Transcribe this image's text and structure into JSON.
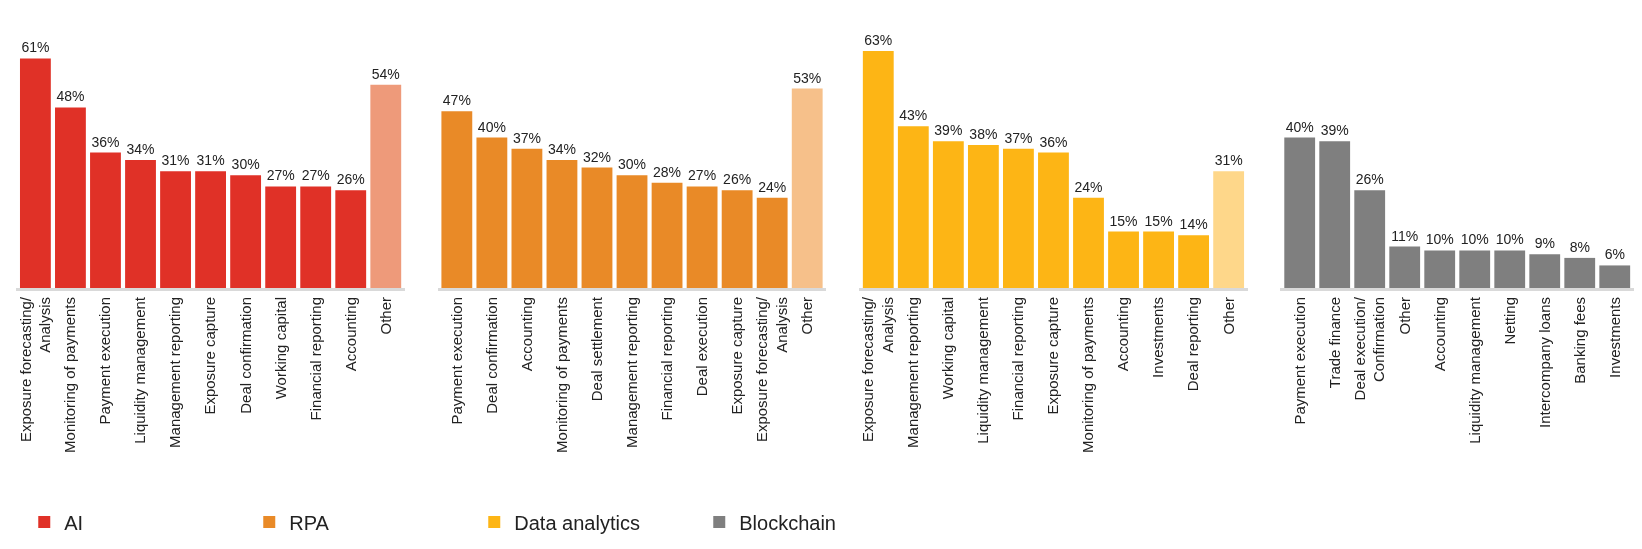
{
  "chart_data": [
    {
      "type": "bar",
      "legend": "bottom",
      "tick_labels": "x",
      "categories": [
        "Exposure forecasting/\nAnalysis",
        "Monitoring of payments",
        "Payment execution",
        "Liquidity management",
        "Management reporting",
        "Exposure capture",
        "Deal confirmation",
        "Working capital",
        "Financial reporting",
        "Accounting",
        "Other"
      ],
      "series": [
        {
          "name": "AI",
          "color": "#e03127",
          "colors": [
            "#e03127",
            "#e03127",
            "#e03127",
            "#e03127",
            "#e03127",
            "#e03127",
            "#e03127",
            "#e03127",
            "#e03127",
            "#e03127",
            "#ee9a7a"
          ],
          "values": [
            61,
            48,
            36,
            34,
            31,
            31,
            30,
            27,
            27,
            26,
            54
          ],
          "value_labels": [
            "61%",
            "48%",
            "36%",
            "34%",
            "31%",
            "31%",
            "30%",
            "27%",
            "27%",
            "26%",
            "54%"
          ]
        }
      ]
    },
    {
      "type": "bar",
      "legend": "bottom",
      "tick_labels": "x",
      "categories": [
        "Payment execution",
        "Deal confirmation",
        "Accounting",
        "Monitoring of payments",
        "Deal settlement",
        "Management reporting",
        "Financial reporting",
        "Deal execution",
        "Exposure capture",
        "Exposure forecasting/\nAnalysis",
        "Other"
      ],
      "series": [
        {
          "name": "RPA",
          "color": "#e98a27",
          "colors": [
            "#e98a27",
            "#e98a27",
            "#e98a27",
            "#e98a27",
            "#e98a27",
            "#e98a27",
            "#e98a27",
            "#e98a27",
            "#e98a27",
            "#e98a27",
            "#f6c08a"
          ],
          "values": [
            47,
            40,
            37,
            34,
            32,
            30,
            28,
            27,
            26,
            24,
            53
          ],
          "value_labels": [
            "47%",
            "40%",
            "37%",
            "34%",
            "32%",
            "30%",
            "28%",
            "27%",
            "26%",
            "24%",
            "53%"
          ]
        }
      ]
    },
    {
      "type": "bar",
      "legend": "bottom",
      "tick_labels": "x",
      "categories": [
        "Exposure forecasting/\nAnalysis",
        "Management reporting",
        "Working capital",
        "Liquidity management",
        "Financial reporting",
        "Exposure capture",
        "Monitoring of payments",
        "Accounting",
        "Investments",
        "Deal reporting",
        "Other"
      ],
      "series": [
        {
          "name": "Data analytics",
          "color": "#fdb515",
          "colors": [
            "#fdb515",
            "#fdb515",
            "#fdb515",
            "#fdb515",
            "#fdb515",
            "#fdb515",
            "#fdb515",
            "#fdb515",
            "#fdb515",
            "#fdb515",
            "#fed78a"
          ],
          "values": [
            63,
            43,
            39,
            38,
            37,
            36,
            24,
            15,
            15,
            14,
            31
          ],
          "value_labels": [
            "63%",
            "43%",
            "39%",
            "38%",
            "37%",
            "36%",
            "24%",
            "15%",
            "15%",
            "14%",
            "31%"
          ]
        }
      ]
    },
    {
      "type": "bar",
      "legend": "bottom",
      "tick_labels": "x",
      "categories": [
        "Payment execution",
        "Trade finance",
        "Deal execution/\nConfirmation",
        "Other",
        "Accounting",
        "Liquidity management",
        "Netting",
        "Intercompany loans",
        "Banking fees",
        "Investments"
      ],
      "series": [
        {
          "name": "Blockchain",
          "color": "#7f7f7f",
          "values": [
            40,
            39,
            26,
            11,
            10,
            10,
            10,
            9,
            8,
            6
          ],
          "value_labels": [
            "40%",
            "39%",
            "26%",
            "11%",
            "10%",
            "10%",
            "10%",
            "9%",
            "8%",
            "6%"
          ]
        }
      ]
    }
  ]
}
